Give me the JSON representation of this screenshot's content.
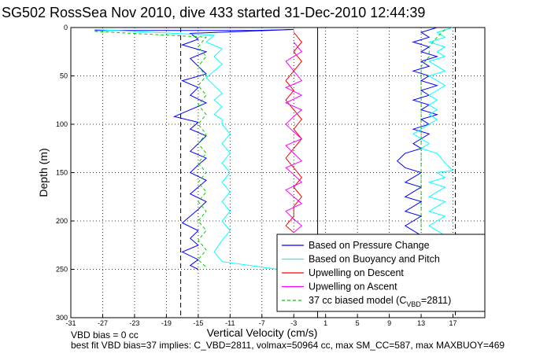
{
  "chart_data": {
    "type": "line",
    "title": "SG502 RossSea Nov 2010, dive 433 started 31-Dec-2010 12:44:39",
    "xlabel": "Vertical Velocity (cm/s)",
    "ylabel": "Depth (m)",
    "xlim": [
      -31,
      21
    ],
    "ylim": [
      300,
      0
    ],
    "xticks": [
      -31,
      -27,
      -23,
      -19,
      -15,
      -11,
      -7,
      -3,
      1,
      5,
      9,
      13,
      17
    ],
    "yticks": [
      0,
      50,
      100,
      150,
      200,
      250,
      300
    ],
    "grid": true,
    "legend_position": "bottom-right",
    "vlines": [
      {
        "x": -17.2,
        "style": "dashed"
      },
      {
        "x": 17.3,
        "style": "dashed"
      },
      {
        "x": 0,
        "style": "solid"
      }
    ],
    "series": [
      {
        "name": "Based on Pressure Change",
        "color": "#0000ff",
        "style": "solid",
        "points": [
          [
            -28,
            3
          ],
          [
            -8,
            3
          ],
          [
            -3,
            2
          ],
          [
            -16,
            6
          ],
          [
            -15,
            12
          ],
          [
            -17,
            18
          ],
          [
            -14,
            25
          ],
          [
            -16,
            32
          ],
          [
            -15,
            40
          ],
          [
            -14,
            48
          ],
          [
            -17,
            55
          ],
          [
            -15,
            62
          ],
          [
            -16,
            70
          ],
          [
            -14,
            78
          ],
          [
            -16,
            85
          ],
          [
            -18,
            92
          ],
          [
            -15,
            98
          ],
          [
            -16,
            105
          ],
          [
            -14,
            112
          ],
          [
            -15,
            120
          ],
          [
            -16,
            128
          ],
          [
            -14,
            135
          ],
          [
            -15,
            142
          ],
          [
            -16,
            150
          ],
          [
            -14,
            158
          ],
          [
            -15,
            165
          ],
          [
            -16,
            172
          ],
          [
            -14,
            180
          ],
          [
            -15,
            188
          ],
          [
            -16,
            195
          ],
          [
            -17,
            202
          ],
          [
            -15,
            210
          ],
          [
            -16,
            218
          ],
          [
            -15,
            225
          ],
          [
            -17,
            232
          ],
          [
            -15,
            240
          ],
          [
            -16,
            246
          ],
          [
            -15,
            250
          ]
        ]
      },
      {
        "name": "Based on Buoyancy and Pitch",
        "color": "#00ffff",
        "style": "solid",
        "points": [
          [
            -28,
            2
          ],
          [
            -13,
            8
          ],
          [
            -14,
            15
          ],
          [
            -12,
            22
          ],
          [
            -13,
            30
          ],
          [
            -12,
            38
          ],
          [
            -13,
            45
          ],
          [
            -14,
            52
          ],
          [
            -13,
            60
          ],
          [
            -12,
            68
          ],
          [
            -13,
            75
          ],
          [
            -12,
            82
          ],
          [
            -13,
            90
          ],
          [
            -12,
            95
          ],
          [
            -12,
            100
          ],
          [
            -11,
            110
          ],
          [
            -12,
            120
          ],
          [
            -11,
            130
          ],
          [
            -12,
            140
          ],
          [
            -11,
            150
          ],
          [
            -12,
            160
          ],
          [
            -11,
            170
          ],
          [
            -12,
            180
          ],
          [
            -11,
            190
          ],
          [
            -12,
            200
          ],
          [
            -11,
            210
          ],
          [
            -12,
            220
          ],
          [
            -13,
            232
          ],
          [
            -12,
            242
          ],
          [
            -5,
            250
          ],
          [
            0,
            250
          ]
        ]
      },
      {
        "name": "Upwelling on Descent",
        "color": "#ff0000",
        "style": "solid",
        "points": [
          [
            -3,
            5
          ],
          [
            -2,
            15
          ],
          [
            -3,
            25
          ],
          [
            -2,
            35
          ],
          [
            -3,
            45
          ],
          [
            -4,
            55
          ],
          [
            -3,
            65
          ],
          [
            -4,
            75
          ],
          [
            -3,
            85
          ],
          [
            -2,
            95
          ],
          [
            -3,
            105
          ],
          [
            -2,
            115
          ],
          [
            -3,
            125
          ],
          [
            -4,
            135
          ],
          [
            -3,
            145
          ],
          [
            -2,
            155
          ],
          [
            -3,
            165
          ],
          [
            -2,
            175
          ],
          [
            -3,
            185
          ],
          [
            -3,
            195
          ],
          [
            -4,
            205
          ],
          [
            -3,
            212
          ]
        ]
      },
      {
        "name": "Upwelling on Ascent",
        "color": "#ff00ff",
        "style": "solid",
        "points": [
          [
            -3,
            15
          ],
          [
            -2,
            25
          ],
          [
            -4,
            35
          ],
          [
            -3,
            45
          ],
          [
            -2,
            55
          ],
          [
            -4,
            62
          ],
          [
            -2,
            70
          ],
          [
            -4,
            78
          ],
          [
            -2,
            85
          ],
          [
            -3,
            92
          ],
          [
            -4,
            100
          ],
          [
            -3,
            108
          ],
          [
            -2,
            115
          ],
          [
            -4,
            122
          ],
          [
            -3,
            130
          ],
          [
            -2,
            138
          ],
          [
            -4,
            145
          ],
          [
            -3,
            152
          ],
          [
            -2,
            160
          ],
          [
            -4,
            168
          ],
          [
            -3,
            175
          ],
          [
            -2,
            182
          ],
          [
            -4,
            190
          ],
          [
            -3,
            198
          ],
          [
            -2,
            205
          ],
          [
            -3,
            212
          ]
        ]
      },
      {
        "name": "37 cc biased model (C_VBD=2811)",
        "color": "#00cc00",
        "style": "dashed",
        "points": [
          [
            -28,
            4
          ],
          [
            -14,
            10
          ],
          [
            -15,
            20
          ],
          [
            -14,
            30
          ],
          [
            -15,
            40
          ],
          [
            -14,
            50
          ],
          [
            -15,
            60
          ],
          [
            -14,
            70
          ],
          [
            -15,
            80
          ],
          [
            -14,
            90
          ],
          [
            -15,
            100
          ],
          [
            -14,
            110
          ],
          [
            -15,
            120
          ],
          [
            -14,
            130
          ],
          [
            -15,
            140
          ],
          [
            -14,
            150
          ],
          [
            -15,
            160
          ],
          [
            -14,
            170
          ],
          [
            -15,
            180
          ],
          [
            -14,
            190
          ],
          [
            -15,
            200
          ],
          [
            -14,
            210
          ],
          [
            -15,
            220
          ],
          [
            -14,
            230
          ],
          [
            -15,
            240
          ],
          [
            -14,
            248
          ]
        ]
      }
    ],
    "ascent_series": [
      {
        "name": "Based on Pressure Change (ascent)",
        "color": "#0000ff",
        "points": [
          [
            15,
            0
          ],
          [
            13,
            5
          ],
          [
            14,
            10
          ],
          [
            12,
            15
          ],
          [
            14,
            20
          ],
          [
            13,
            25
          ],
          [
            15,
            30
          ],
          [
            13,
            35
          ],
          [
            14,
            40
          ],
          [
            12,
            45
          ],
          [
            14,
            50
          ],
          [
            13,
            55
          ],
          [
            15,
            60
          ],
          [
            13,
            65
          ],
          [
            14,
            70
          ],
          [
            12,
            75
          ],
          [
            14,
            80
          ],
          [
            13,
            85
          ],
          [
            15,
            90
          ],
          [
            13,
            95
          ],
          [
            14,
            100
          ],
          [
            12,
            105
          ],
          [
            14,
            110
          ],
          [
            13,
            115
          ],
          [
            12,
            120
          ],
          [
            13,
            125
          ],
          [
            11,
            130
          ],
          [
            10,
            138
          ],
          [
            11,
            145
          ],
          [
            13,
            150
          ],
          [
            12,
            155
          ],
          [
            11,
            160
          ],
          [
            13,
            165
          ],
          [
            12,
            170
          ],
          [
            11,
            175
          ],
          [
            13,
            180
          ],
          [
            12,
            185
          ],
          [
            11,
            190
          ],
          [
            13,
            195
          ],
          [
            12,
            200
          ],
          [
            11,
            205
          ],
          [
            12,
            210
          ],
          [
            13,
            215
          ]
        ]
      },
      {
        "name": "Based on Buoyancy and Pitch (ascent)",
        "color": "#00ffff",
        "points": [
          [
            17,
            0
          ],
          [
            15,
            5
          ],
          [
            16,
            10
          ],
          [
            14,
            15
          ],
          [
            16,
            20
          ],
          [
            15,
            25
          ],
          [
            16,
            30
          ],
          [
            14,
            35
          ],
          [
            15,
            40
          ],
          [
            16,
            45
          ],
          [
            14,
            50
          ],
          [
            15,
            55
          ],
          [
            16,
            60
          ],
          [
            15,
            65
          ],
          [
            14,
            70
          ],
          [
            15,
            75
          ],
          [
            14,
            80
          ],
          [
            15,
            85
          ],
          [
            14,
            90
          ],
          [
            15,
            95
          ],
          [
            14,
            100
          ],
          [
            13,
            105
          ],
          [
            12,
            110
          ],
          [
            13,
            115
          ],
          [
            14,
            120
          ],
          [
            13,
            125
          ],
          [
            15,
            130
          ],
          [
            16,
            140
          ],
          [
            17,
            148
          ],
          [
            15,
            150
          ],
          [
            16,
            155
          ],
          [
            14,
            160
          ],
          [
            16,
            165
          ],
          [
            15,
            170
          ],
          [
            14,
            175
          ],
          [
            16,
            180
          ],
          [
            15,
            185
          ],
          [
            14,
            190
          ],
          [
            16,
            195
          ],
          [
            15,
            200
          ],
          [
            14,
            205
          ],
          [
            15,
            210
          ],
          [
            16,
            215
          ]
        ]
      },
      {
        "name": "37 cc biased model (ascent)",
        "color": "#00cc00",
        "points": [
          [
            16,
            2
          ],
          [
            15,
            10
          ],
          [
            14,
            20
          ],
          [
            14,
            30
          ],
          [
            13,
            40
          ],
          [
            13,
            50
          ],
          [
            13,
            60
          ],
          [
            13,
            70
          ],
          [
            13,
            80
          ],
          [
            13,
            90
          ],
          [
            13,
            100
          ],
          [
            13,
            110
          ],
          [
            13,
            120
          ],
          [
            13,
            130
          ],
          [
            13,
            140
          ],
          [
            13,
            150
          ],
          [
            13,
            160
          ],
          [
            13,
            170
          ],
          [
            13,
            180
          ],
          [
            13,
            190
          ],
          [
            13,
            200
          ],
          [
            13,
            210
          ]
        ]
      }
    ],
    "legend_entries": [
      {
        "label": "Based on Pressure Change",
        "color": "#0000ff",
        "style": "solid"
      },
      {
        "label": "Based on Buoyancy and Pitch",
        "color": "#00ffff",
        "style": "solid"
      },
      {
        "label": "Upwelling on Descent",
        "color": "#ff0000",
        "style": "solid"
      },
      {
        "label": "Upwelling on Ascent",
        "color": "#ff00ff",
        "style": "solid"
      },
      {
        "label": "37 cc biased model (C",
        "label_sub": "VBD",
        "label_tail": "=2811)",
        "color": "#00cc00",
        "style": "dashed"
      }
    ]
  },
  "footnotes": {
    "line1": "VBD bias = 0 cc",
    "line2": "best fit VBD bias=37 implies: C_VBD=2811, volmax=50964 cc, max SM_CC=587, max MAXBUOY=469"
  }
}
